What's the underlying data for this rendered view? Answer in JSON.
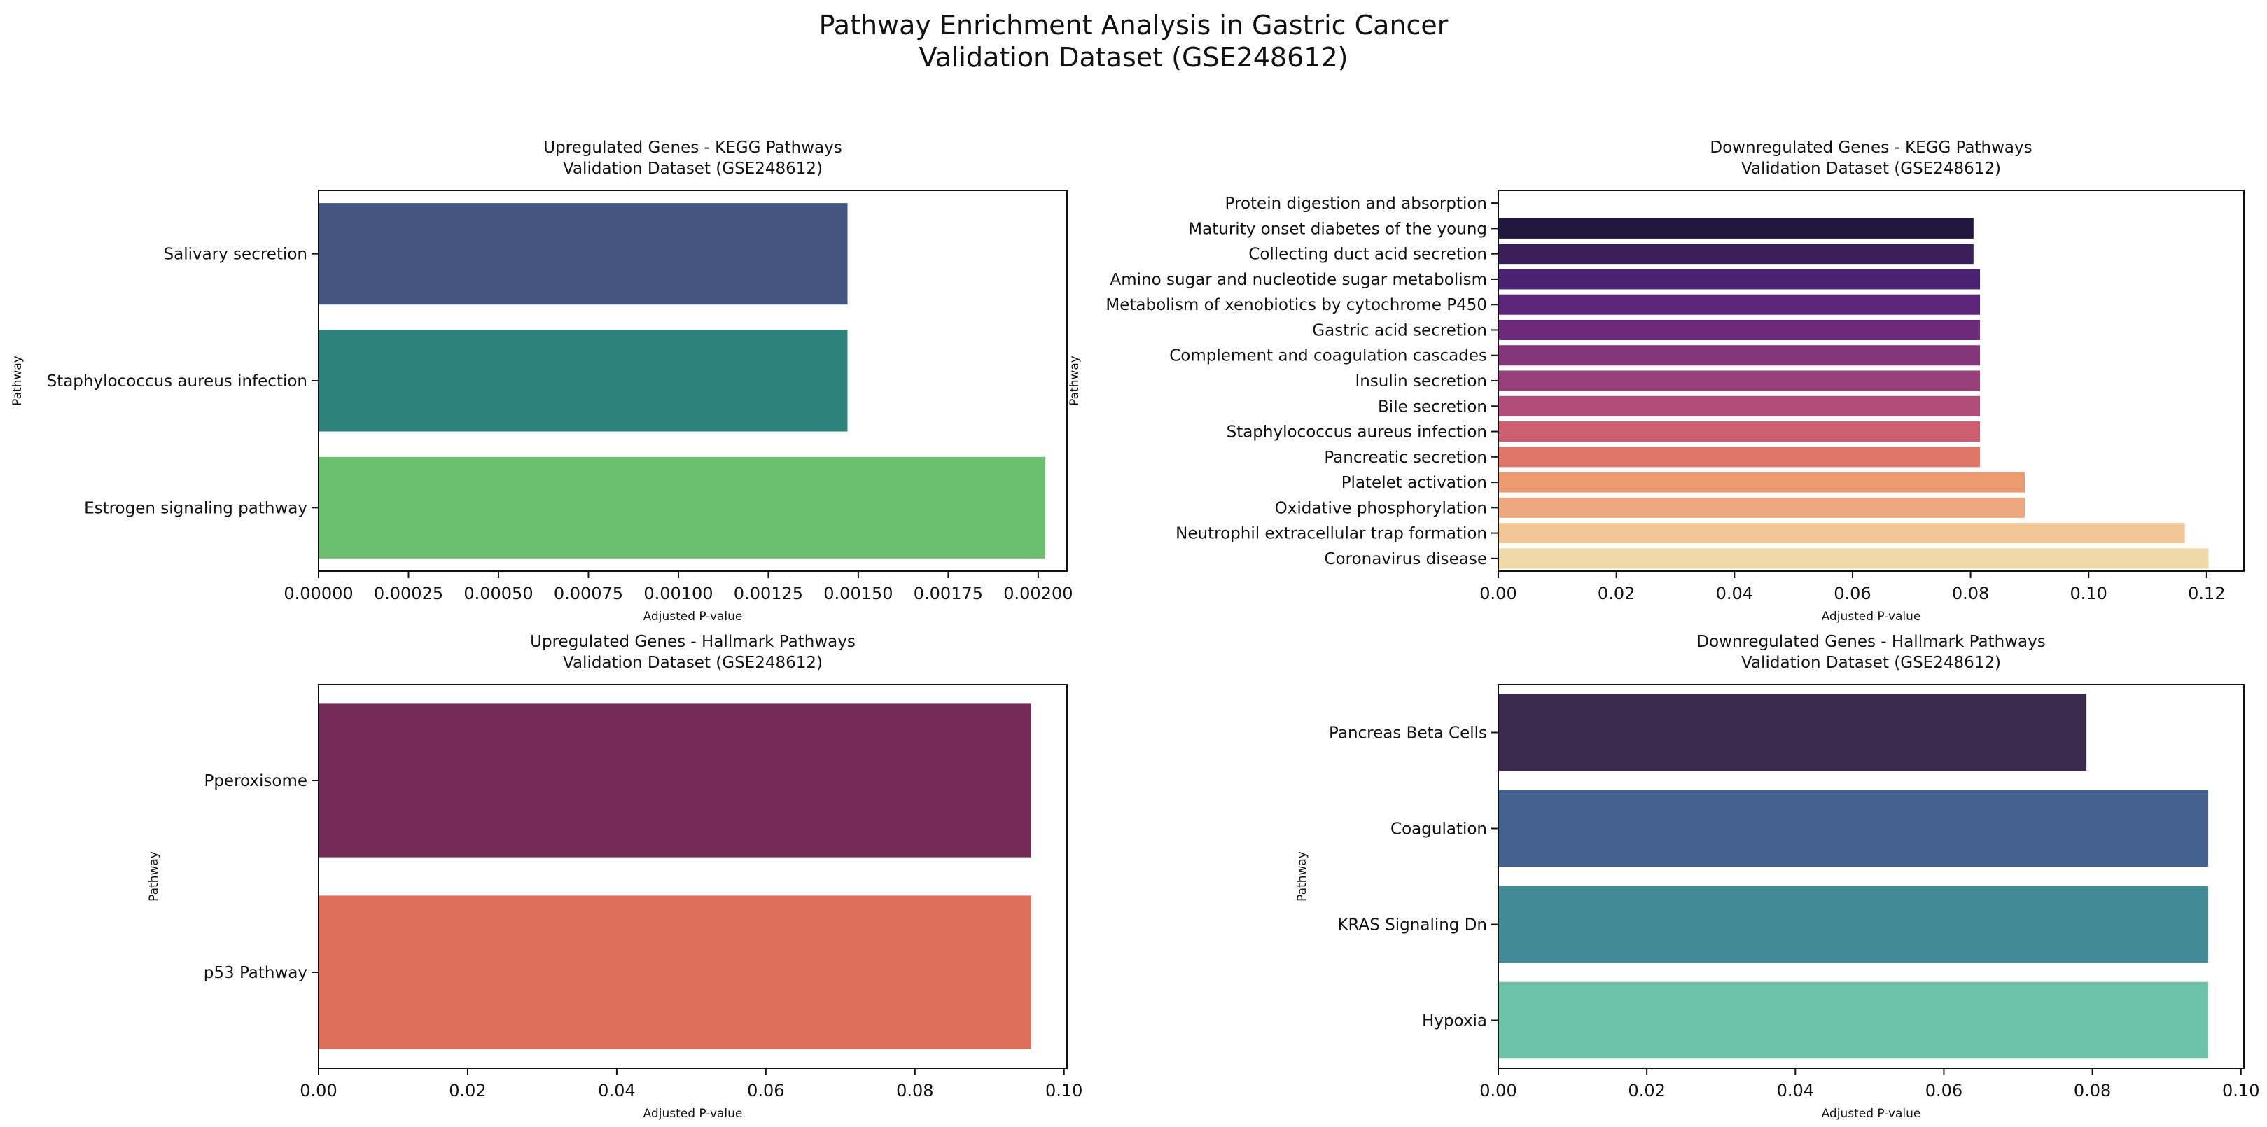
{
  "figure": {
    "title_line1": "Pathway Enrichment Analysis in Gastric Cancer",
    "title_line2": "Validation Dataset (GSE248612)"
  },
  "chart_data": [
    {
      "type": "bar",
      "orientation": "horizontal",
      "title": "Upregulated Genes - KEGG Pathways",
      "subtitle": "Validation Dataset (GSE248612)",
      "xlabel": "Adjusted P-value",
      "ylabel": "Pathway",
      "xlim": [
        0,
        0.00208
      ],
      "xticks": [
        0,
        0.00025,
        0.0005,
        0.00075,
        0.001,
        0.00125,
        0.0015,
        0.00175,
        0.002
      ],
      "xtick_labels": [
        "0.00000",
        "0.00025",
        "0.00050",
        "0.00075",
        "0.00100",
        "0.00125",
        "0.00150",
        "0.00175",
        "0.00200"
      ],
      "categories": [
        "Salivary secretion",
        "Staphylococcus aureus infection",
        "Estrogen signaling pathway"
      ],
      "values": [
        0.00147,
        0.00147,
        0.00202
      ],
      "colors": [
        "#42547f",
        "#2d837c",
        "#6bbf6e"
      ]
    },
    {
      "type": "bar",
      "orientation": "horizontal",
      "title": "Downregulated Genes - KEGG Pathways",
      "subtitle": "Validation Dataset (GSE248612)",
      "xlabel": "Adjusted P-value",
      "ylabel": "Pathway",
      "xlim": [
        0,
        0.1263
      ],
      "xticks": [
        0,
        0.02,
        0.04,
        0.06,
        0.08,
        0.1,
        0.12
      ],
      "xtick_labels": [
        "0.00",
        "0.02",
        "0.04",
        "0.06",
        "0.08",
        "0.10",
        "0.12"
      ],
      "categories": [
        "Protein digestion and absorption",
        "Maturity onset diabetes of the young",
        "Collecting duct acid secretion",
        "Amino sugar and nucleotide sugar metabolism",
        "Metabolism of xenobiotics by cytochrome P450",
        "Gastric acid secretion",
        "Complement and coagulation cascades",
        "Insulin secretion",
        "Bile secretion",
        "Staphylococcus aureus infection",
        "Pancreatic secretion",
        "Platelet activation",
        "Oxidative phosphorylation",
        "Neutrophil extracellular trap formation",
        "Coronavirus disease"
      ],
      "values": [
        0.0,
        0.0805,
        0.0805,
        0.0816,
        0.0816,
        0.0816,
        0.0816,
        0.0816,
        0.0816,
        0.0816,
        0.0816,
        0.0892,
        0.0892,
        0.1163,
        0.1203
      ],
      "colors": [
        "#ffffff",
        "#21173f",
        "#3b1f5a",
        "#4b2172",
        "#5c2579",
        "#6e2a7a",
        "#823579",
        "#983e78",
        "#b04d78",
        "#cb5f6f",
        "#de7567",
        "#ec9a6f",
        "#eda882",
        "#f2c696",
        "#f0d9a8"
      ]
    },
    {
      "type": "bar",
      "orientation": "horizontal",
      "title": "Upregulated Genes - Hallmark Pathways",
      "subtitle": "Validation Dataset (GSE248612)",
      "xlabel": "Adjusted P-value",
      "ylabel": "Pathway",
      "xlim": [
        0,
        0.1004
      ],
      "xticks": [
        0,
        0.02,
        0.04,
        0.06,
        0.08,
        0.1
      ],
      "xtick_labels": [
        "0.00",
        "0.02",
        "0.04",
        "0.06",
        "0.08",
        "0.10"
      ],
      "categories": [
        "Pperoxisome",
        "p53 Pathway"
      ],
      "values": [
        0.0956,
        0.0956
      ],
      "colors": [
        "#752a56",
        "#dd6e5a"
      ]
    },
    {
      "type": "bar",
      "orientation": "horizontal",
      "title": "Downregulated Genes - Hallmark Pathways",
      "subtitle": "Validation Dataset (GSE248612)",
      "xlabel": "Adjusted P-value",
      "ylabel": "Pathway",
      "xlim": [
        0,
        0.1004
      ],
      "xticks": [
        0,
        0.02,
        0.04,
        0.06,
        0.08,
        0.1
      ],
      "xtick_labels": [
        "0.00",
        "0.02",
        "0.04",
        "0.06",
        "0.08",
        "0.10"
      ],
      "categories": [
        "Pancreas Beta Cells",
        "Coagulation",
        "KRAS Signaling Dn",
        "Hypoxia"
      ],
      "values": [
        0.0792,
        0.0956,
        0.0956,
        0.0956
      ],
      "colors": [
        "#3a2b4e",
        "#45618f",
        "#408b96",
        "#6dc2a7"
      ]
    }
  ]
}
